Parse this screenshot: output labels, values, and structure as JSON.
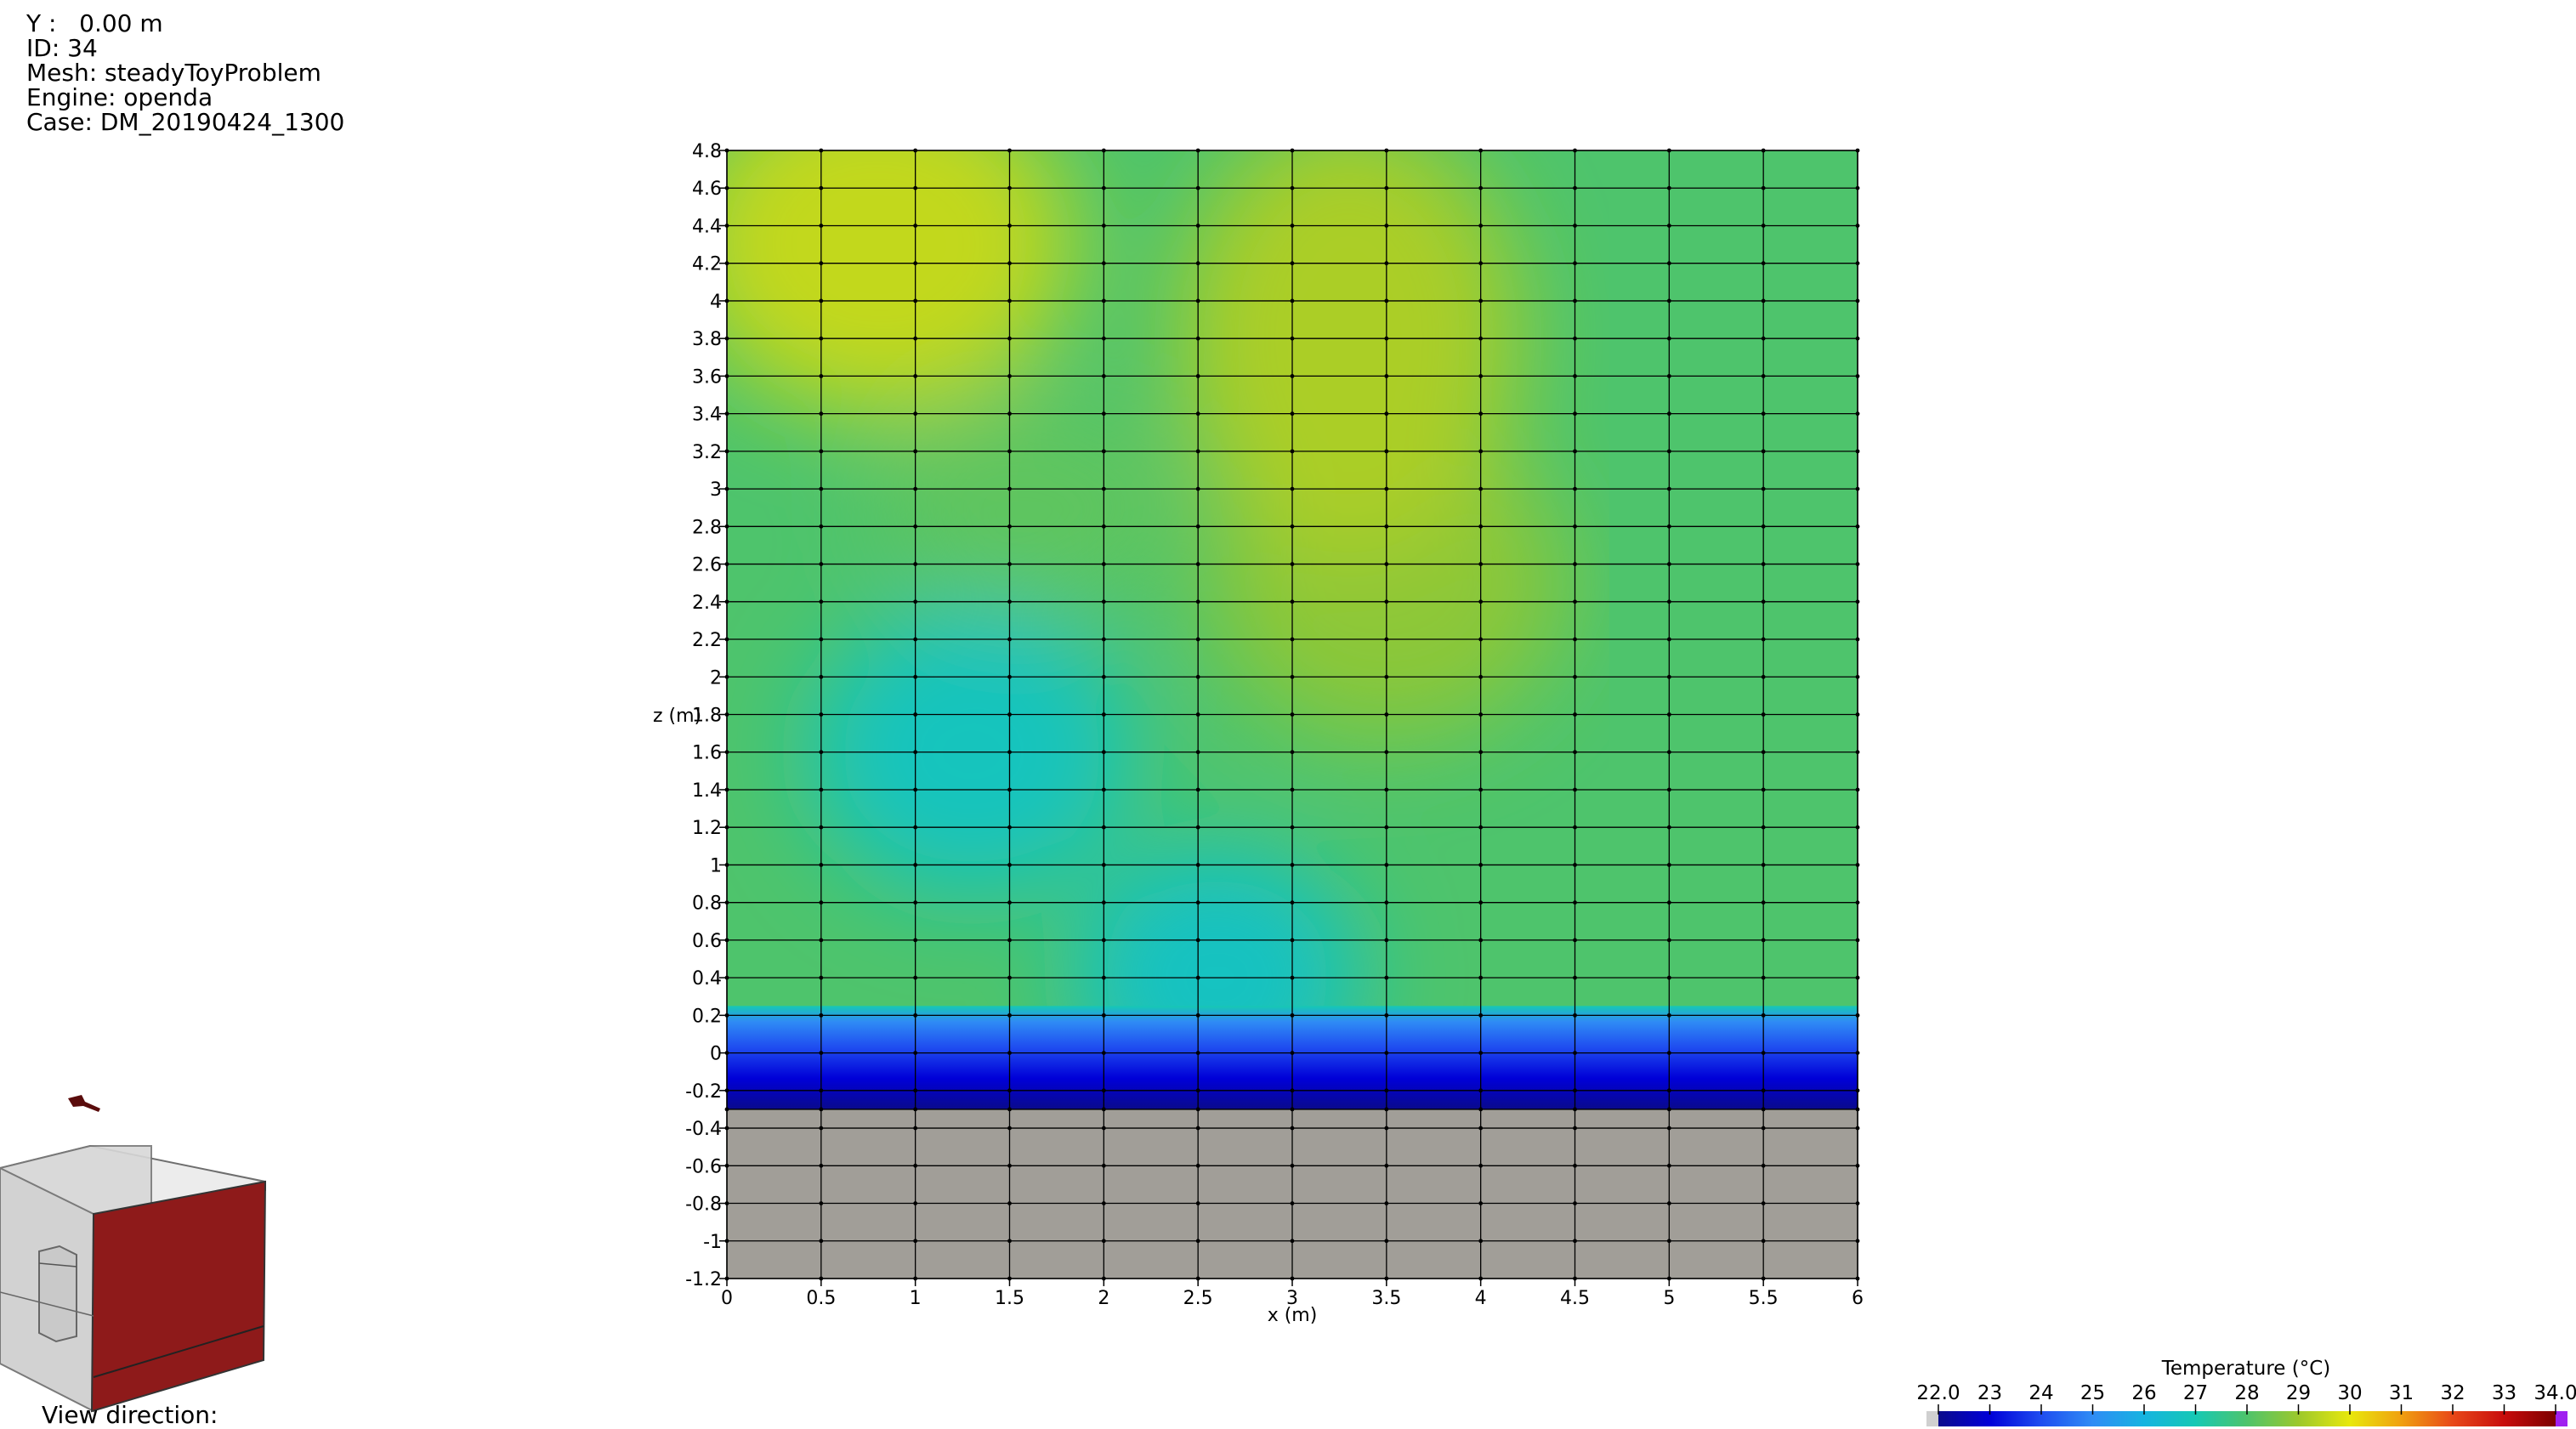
{
  "info": {
    "y_position": "Y :   0.00 m",
    "id": "ID: 34",
    "mesh": "Mesh: steadyToyProblem",
    "engine": "Engine: openda",
    "case": "Case: DM_20190424_1300"
  },
  "view_direction_label": "View direction:",
  "colors": {
    "background": "#ffffff",
    "solid_region": "#a19e98",
    "grid_lines": "#000000",
    "cube_accent": "#8e1a1a",
    "cube_body": "#d4d4d4"
  },
  "icons": [
    "orientation-arrow-icon",
    "view-direction-cube-icon"
  ],
  "chart_data": {
    "type": "heatmap",
    "title": "",
    "xlabel": "x (m)",
    "ylabel": "z (m)",
    "xlim": [
      0,
      6
    ],
    "ylim": [
      -1.2,
      4.8
    ],
    "x_ticks": [
      "0",
      "0.5",
      "1",
      "1.5",
      "2",
      "2.5",
      "3",
      "3.5",
      "4",
      "4.5",
      "5",
      "5.5",
      "6"
    ],
    "y_ticks": [
      "4.8",
      "4.6",
      "4.4",
      "4.2",
      "4",
      "3.8",
      "3.6",
      "3.4",
      "3.2",
      "3",
      "2.8",
      "2.6",
      "2.4",
      "2.2",
      "2",
      "1.8",
      "1.6",
      "1.4",
      "1.2",
      "1",
      "0.8",
      "0.6",
      "0.4",
      "0.2",
      "0",
      "-0.2",
      "-0.4",
      "-0.6",
      "-0.8",
      "-1",
      "-1.2"
    ],
    "y_tick_values": [
      4.8,
      4.6,
      4.4,
      4.2,
      4.0,
      3.8,
      3.6,
      3.4,
      3.2,
      3.0,
      2.8,
      2.6,
      2.4,
      2.2,
      2.0,
      1.8,
      1.6,
      1.4,
      1.2,
      1.0,
      0.8,
      0.6,
      0.4,
      0.2,
      0.0,
      -0.2,
      -0.4,
      -0.6,
      -0.8,
      -1.0,
      -1.2
    ],
    "mesh_x_lines": [
      0,
      0.5,
      1,
      1.5,
      2,
      2.5,
      3,
      3.5,
      4,
      4.5,
      5,
      5.5,
      6
    ],
    "mesh_z_lines": [
      4.8,
      4.6,
      4.4,
      4.2,
      4.0,
      3.8,
      3.6,
      3.4,
      3.2,
      3.0,
      2.8,
      2.6,
      2.4,
      2.2,
      2.0,
      1.8,
      1.6,
      1.4,
      1.2,
      1.0,
      0.8,
      0.6,
      0.4,
      0.2,
      0.0,
      -0.2,
      -0.3,
      -0.4,
      -0.6,
      -0.8,
      -1.0,
      -1.2
    ],
    "fluid_region_z": [
      -0.3,
      4.8
    ],
    "solid_region_z": [
      -1.2,
      -0.3
    ],
    "temperature_field_approx": {
      "warm_zone": {
        "x_center": 0.8,
        "z_center": 4.3,
        "temperature": 29.5
      },
      "warm_zone_2": {
        "x_center": 3.5,
        "z_center": 2.5,
        "temperature": 28.8
      },
      "cool_zone": {
        "x_center": 1.3,
        "z_center": 1.6,
        "temperature": 26.8
      },
      "cool_zone_2": {
        "x_center": 2.6,
        "z_center": 0.4,
        "temperature": 26.7
      },
      "right_side_temperature": 28.0,
      "bottom_gradient_temperature_range": [
        22.2,
        27.0
      ]
    },
    "colorbar": {
      "title": "Temperature (°C)",
      "min": 22.0,
      "max": 34.0,
      "tick_labels": [
        "22.0",
        "23",
        "24",
        "25",
        "26",
        "27",
        "28",
        "29",
        "30",
        "31",
        "32",
        "33",
        "34.0"
      ],
      "tick_values": [
        22,
        23,
        24,
        25,
        26,
        27,
        28,
        29,
        30,
        31,
        32,
        33,
        34
      ],
      "colormap_stops": [
        {
          "t": 22.0,
          "color": "#0a0a8c"
        },
        {
          "t": 23.0,
          "color": "#0000d8"
        },
        {
          "t": 24.0,
          "color": "#1f4df0"
        },
        {
          "t": 25.0,
          "color": "#2f8cf5"
        },
        {
          "t": 26.0,
          "color": "#16b4e0"
        },
        {
          "t": 27.0,
          "color": "#16c8b4"
        },
        {
          "t": 28.0,
          "color": "#4ec46c"
        },
        {
          "t": 29.0,
          "color": "#9cc82c"
        },
        {
          "t": 30.0,
          "color": "#e8e80c"
        },
        {
          "t": 31.0,
          "color": "#f0a010"
        },
        {
          "t": 32.0,
          "color": "#e84818"
        },
        {
          "t": 33.0,
          "color": "#c80c0c"
        },
        {
          "t": 34.0,
          "color": "#7c0000"
        }
      ],
      "below_range_color": "#d0d0d0",
      "above_range_color": "#a020f0"
    }
  }
}
